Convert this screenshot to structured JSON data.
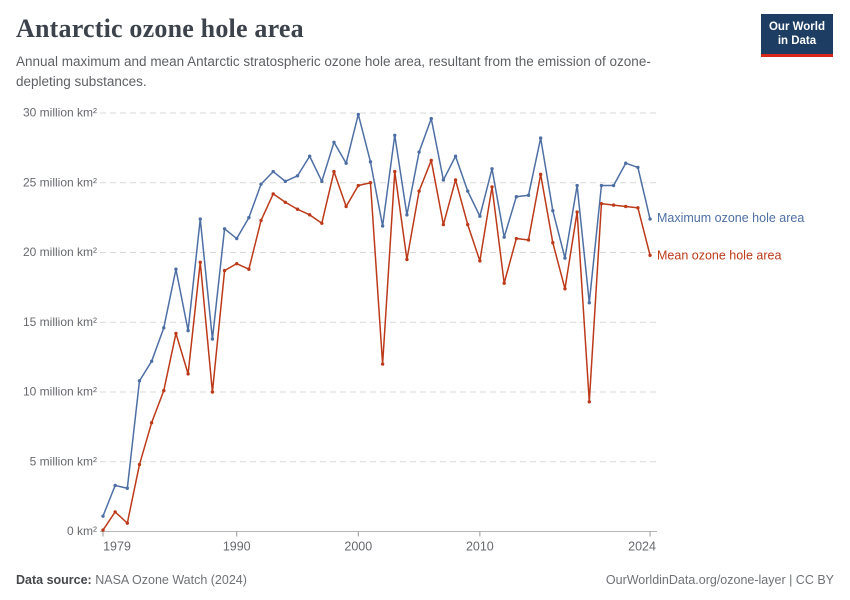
{
  "header": {
    "title": "Antarctic ozone hole area",
    "subtitle": "Annual maximum and mean Antarctic stratospheric ozone hole area, resultant from the emission of ozone-depleting substances.",
    "logo": {
      "line1": "Our World",
      "line2": "in Data"
    }
  },
  "footer": {
    "source_label": "Data source:",
    "source_value": " NASA Ozone Watch (2024)",
    "right_text": "OurWorldinData.org/ozone-layer | CC BY"
  },
  "chart_data": {
    "type": "line",
    "title": "Antarctic ozone hole area",
    "x_label": "",
    "y_label": "",
    "ylim": [
      0,
      30
    ],
    "grid": "horizontal-dashed",
    "legend_position": "right-of-line-ends",
    "years": [
      1979,
      1980,
      1981,
      1982,
      1983,
      1984,
      1985,
      1986,
      1987,
      1988,
      1989,
      1990,
      1991,
      1992,
      1993,
      1994,
      1995,
      1996,
      1997,
      1998,
      1999,
      2000,
      2001,
      2002,
      2003,
      2004,
      2005,
      2006,
      2007,
      2008,
      2009,
      2010,
      2011,
      2012,
      2013,
      2014,
      2015,
      2016,
      2017,
      2018,
      2019,
      2020,
      2021,
      2022,
      2023,
      2024
    ],
    "series": [
      {
        "name": "Maximum ozone hole area",
        "color": "#4e6fa4",
        "unit": "million km²",
        "values": [
          1.1,
          3.3,
          3.1,
          10.8,
          12.2,
          14.6,
          18.8,
          14.4,
          22.4,
          13.8,
          21.7,
          21.0,
          22.5,
          24.9,
          25.8,
          25.1,
          25.5,
          26.9,
          25.1,
          27.9,
          26.4,
          29.9,
          26.5,
          21.9,
          28.4,
          22.7,
          27.2,
          29.6,
          25.2,
          26.9,
          24.4,
          22.6,
          26.0,
          21.1,
          24.0,
          24.1,
          28.2,
          23.0,
          19.6,
          24.8,
          16.4,
          24.8,
          24.8,
          26.4,
          26.1,
          22.4
        ]
      },
      {
        "name": "Mean ozone hole area",
        "color": "#bc3a1a",
        "unit": "million km²",
        "values": [
          0.1,
          1.4,
          0.6,
          4.8,
          7.8,
          10.1,
          14.2,
          11.3,
          19.3,
          10.0,
          18.7,
          19.2,
          18.8,
          22.3,
          24.2,
          23.6,
          23.1,
          22.7,
          22.1,
          25.8,
          23.3,
          24.8,
          25.0,
          12.0,
          25.8,
          19.5,
          24.4,
          26.6,
          22.0,
          25.2,
          22.0,
          19.4,
          24.7,
          17.8,
          21.0,
          20.9,
          25.6,
          20.7,
          17.4,
          22.9,
          9.3,
          23.5,
          23.4,
          23.3,
          23.2,
          19.8
        ]
      }
    ],
    "yticks": [
      0,
      5,
      10,
      15,
      20,
      25,
      30
    ],
    "ytick_labels": [
      "0 km²",
      "5 million km²",
      "10 million km²",
      "15 million km²",
      "20 million km²",
      "25 million km²",
      "30 million km²"
    ],
    "xticks": [
      1979,
      1990,
      2000,
      2010,
      2024
    ],
    "xtick_labels": [
      "1979",
      "1990",
      "2000",
      "2010",
      "2024"
    ]
  }
}
